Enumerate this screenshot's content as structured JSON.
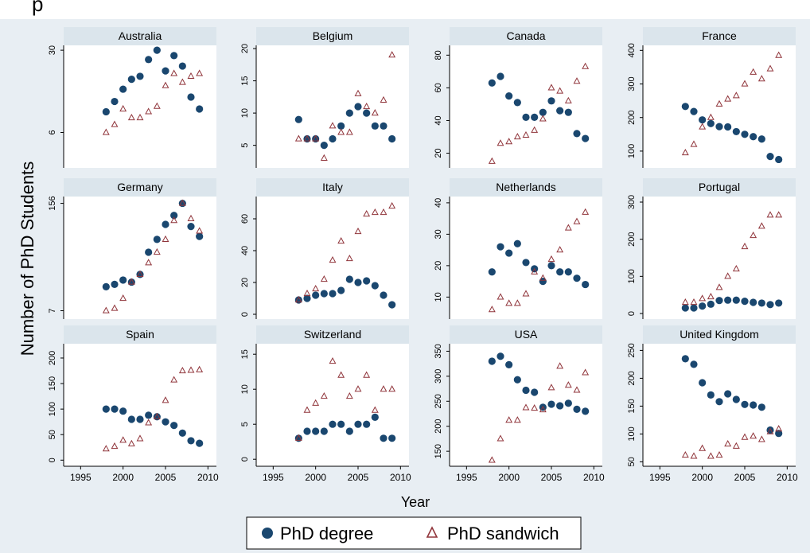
{
  "chart_data": {
    "type": "scatter",
    "ylabel": "Number of PhD Students",
    "xlabel": "Year",
    "xlim": [
      1993,
      2011
    ],
    "xticks": [
      1995,
      2000,
      2005,
      2010
    ],
    "grid": false,
    "legend_position": "bottom",
    "colors": {
      "outer_background": "#e8eef3",
      "panel_background": "#ffffff",
      "header_background": "#dbe5ec",
      "phd_degree": "#1a476f",
      "phd_sandwich": "#90353b"
    },
    "legend": [
      {
        "label": "PhD degree",
        "marker": "circle"
      },
      {
        "label": "PhD sandwich",
        "marker": "triangle"
      }
    ],
    "panels": [
      {
        "name": "Australia",
        "ylim": [
          3,
          33
        ],
        "yticks": [
          6,
          30
        ],
        "yscale": "log",
        "series": [
          {
            "name": "PhD degree",
            "x": [
              1998,
              1999,
              2000,
              2001,
              2002,
              2003,
              2004,
              2005,
              2006,
              2007,
              2008,
              2009
            ],
            "y": [
              9,
              11,
              14,
              17,
              18,
              25,
              30,
              20,
              27,
              22,
              12,
              9.5
            ]
          },
          {
            "name": "PhD sandwich",
            "x": [
              1998,
              1999,
              2000,
              2001,
              2002,
              2003,
              2004,
              2005,
              2006,
              2007,
              2008,
              2009
            ],
            "y": [
              6,
              7,
              9.5,
              8,
              8,
              9,
              10,
              15,
              19,
              16,
              18,
              19
            ]
          }
        ]
      },
      {
        "name": "Belgium",
        "ylim": [
          1.5,
          20.5
        ],
        "yticks": [
          5,
          10,
          15,
          20
        ],
        "series": [
          {
            "name": "PhD degree",
            "x": [
              1998,
              1999,
              2000,
              2001,
              2002,
              2003,
              2004,
              2005,
              2006,
              2007,
              2008,
              2009
            ],
            "y": [
              9,
              6,
              6,
              5,
              6,
              8,
              10,
              11,
              10,
              8,
              8,
              6
            ]
          },
          {
            "name": "PhD sandwich",
            "x": [
              1998,
              1999,
              2000,
              2001,
              2002,
              2003,
              2004,
              2005,
              2006,
              2007,
              2008,
              2009
            ],
            "y": [
              6,
              6,
              6,
              3,
              8,
              7,
              7,
              13,
              11,
              10,
              12,
              19
            ]
          }
        ]
      },
      {
        "name": "Canada",
        "ylim": [
          11,
          86
        ],
        "yticks": [
          20,
          40,
          60,
          80
        ],
        "series": [
          {
            "name": "PhD degree",
            "x": [
              1998,
              1999,
              2000,
              2001,
              2002,
              2003,
              2004,
              2005,
              2006,
              2007,
              2008,
              2009
            ],
            "y": [
              63,
              67,
              55,
              51,
              42,
              42,
              45,
              52,
              46,
              45,
              32,
              29
            ]
          },
          {
            "name": "PhD sandwich",
            "x": [
              1998,
              1999,
              2000,
              2001,
              2002,
              2003,
              2004,
              2005,
              2006,
              2007,
              2008,
              2009
            ],
            "y": [
              15,
              26,
              27,
              30,
              31,
              34,
              41,
              60,
              58,
              52,
              64,
              73
            ]
          }
        ]
      },
      {
        "name": "France",
        "ylim": [
          50,
          415
        ],
        "yticks": [
          100,
          200,
          300,
          400
        ],
        "series": [
          {
            "name": "PhD degree",
            "x": [
              1998,
              1999,
              2000,
              2001,
              2002,
              2003,
              2004,
              2005,
              2006,
              2007,
              2008,
              2009
            ],
            "y": [
              233,
              218,
              193,
              182,
              173,
              172,
              158,
              150,
              143,
              136,
              84,
              75
            ]
          },
          {
            "name": "PhD sandwich",
            "x": [
              1998,
              1999,
              2000,
              2001,
              2002,
              2003,
              2004,
              2005,
              2006,
              2007,
              2008,
              2009
            ],
            "y": [
              95,
              120,
              172,
              200,
              240,
              255,
              265,
              300,
              335,
              315,
              345,
              385
            ]
          }
        ]
      },
      {
        "name": "Germany",
        "ylim": [
          5.5,
          190
        ],
        "yticks": [
          7,
          156
        ],
        "yscale": "log",
        "series": [
          {
            "name": "PhD degree",
            "x": [
              1998,
              1999,
              2000,
              2001,
              2002,
              2003,
              2004,
              2005,
              2006,
              2007,
              2008,
              2009
            ],
            "y": [
              14,
              15,
              17,
              16,
              20,
              38,
              55,
              85,
              110,
              156,
              80,
              60
            ]
          },
          {
            "name": "PhD sandwich",
            "x": [
              1998,
              1999,
              2000,
              2001,
              2002,
              2003,
              2004,
              2005,
              2006,
              2007,
              2008,
              2009
            ],
            "y": [
              7,
              7.5,
              10,
              16,
              20,
              28,
              38,
              55,
              95,
              156,
              100,
              70
            ]
          }
        ]
      },
      {
        "name": "Italy",
        "ylim": [
          -3,
          74
        ],
        "yticks": [
          0,
          20,
          40,
          60
        ],
        "series": [
          {
            "name": "PhD degree",
            "x": [
              1998,
              1999,
              2000,
              2001,
              2002,
              2003,
              2004,
              2005,
              2006,
              2007,
              2008,
              2009
            ],
            "y": [
              9,
              10,
              12,
              13,
              13,
              15,
              22,
              20,
              21,
              18,
              12,
              6
            ]
          },
          {
            "name": "PhD sandwich",
            "x": [
              1998,
              1999,
              2000,
              2001,
              2002,
              2003,
              2004,
              2005,
              2006,
              2007,
              2008,
              2009
            ],
            "y": [
              9,
              13,
              16,
              22,
              34,
              46,
              35,
              52,
              63,
              64,
              64,
              68
            ]
          }
        ]
      },
      {
        "name": "Netherlands",
        "ylim": [
          3,
          42
        ],
        "yticks": [
          10,
          20,
          30,
          40
        ],
        "series": [
          {
            "name": "PhD degree",
            "x": [
              1998,
              1999,
              2000,
              2001,
              2002,
              2003,
              2004,
              2005,
              2006,
              2007,
              2008,
              2009
            ],
            "y": [
              18,
              26,
              24,
              27,
              21,
              19,
              15,
              20,
              18,
              18,
              16,
              14
            ]
          },
          {
            "name": "PhD sandwich",
            "x": [
              1998,
              1999,
              2000,
              2001,
              2002,
              2003,
              2004,
              2005,
              2006,
              2007,
              2008,
              2009
            ],
            "y": [
              6,
              10,
              8,
              8,
              11,
              18,
              16,
              22,
              25,
              32,
              34,
              37
            ]
          }
        ]
      },
      {
        "name": "Portugal",
        "ylim": [
          -15,
          315
        ],
        "yticks": [
          0,
          100,
          200,
          300
        ],
        "series": [
          {
            "name": "PhD degree",
            "x": [
              1998,
              1999,
              2000,
              2001,
              2002,
              2003,
              2004,
              2005,
              2006,
              2007,
              2008,
              2009
            ],
            "y": [
              15,
              15,
              20,
              25,
              35,
              36,
              36,
              33,
              30,
              28,
              24,
              28
            ]
          },
          {
            "name": "PhD sandwich",
            "x": [
              1998,
              1999,
              2000,
              2001,
              2002,
              2003,
              2004,
              2005,
              2006,
              2007,
              2008,
              2009
            ],
            "y": [
              30,
              30,
              40,
              45,
              70,
              100,
              120,
              180,
              210,
              235,
              265,
              265
            ]
          }
        ]
      },
      {
        "name": "Spain",
        "ylim": [
          -12,
          228
        ],
        "yticks": [
          0,
          50,
          100,
          150,
          200
        ],
        "series": [
          {
            "name": "PhD degree",
            "x": [
              1998,
              1999,
              2000,
              2001,
              2002,
              2003,
              2004,
              2005,
              2006,
              2007,
              2008,
              2009
            ],
            "y": [
              100,
              100,
              96,
              80,
              80,
              88,
              85,
              75,
              68,
              53,
              38,
              33
            ]
          },
          {
            "name": "PhD sandwich",
            "x": [
              1998,
              1999,
              2000,
              2001,
              2002,
              2003,
              2004,
              2005,
              2006,
              2007,
              2008,
              2009
            ],
            "y": [
              22,
              27,
              39,
              32,
              42,
              73,
              85,
              117,
              157,
              175,
              176,
              177
            ]
          }
        ]
      },
      {
        "name": "Switzerland",
        "ylim": [
          -1,
          16.5
        ],
        "yticks": [
          0,
          5,
          10,
          15
        ],
        "series": [
          {
            "name": "PhD degree",
            "x": [
              1998,
              1999,
              2000,
              2001,
              2002,
              2003,
              2004,
              2005,
              2006,
              2007,
              2008,
              2009
            ],
            "y": [
              3,
              4,
              4,
              4,
              5,
              5,
              4,
              5,
              5,
              6,
              3,
              3
            ]
          },
          {
            "name": "PhD sandwich",
            "x": [
              1998,
              1999,
              2000,
              2001,
              2002,
              2003,
              2004,
              2005,
              2006,
              2007,
              2008,
              2009
            ],
            "y": [
              3,
              7,
              8,
              9,
              14,
              12,
              9,
              10,
              12,
              7,
              10,
              10
            ]
          }
        ]
      },
      {
        "name": "USA",
        "ylim": [
          120,
          365
        ],
        "yticks": [
          150,
          200,
          250,
          300,
          350
        ],
        "series": [
          {
            "name": "PhD degree",
            "x": [
              1998,
              1999,
              2000,
              2001,
              2002,
              2003,
              2004,
              2005,
              2006,
              2007,
              2008,
              2009
            ],
            "y": [
              330,
              340,
              323,
              293,
              272,
              268,
              238,
              244,
              241,
              246,
              234,
              230
            ]
          },
          {
            "name": "PhD sandwich",
            "x": [
              1998,
              1999,
              2000,
              2001,
              2002,
              2003,
              2004,
              2005,
              2006,
              2007,
              2008,
              2009
            ],
            "y": [
              132,
              175,
              212,
              212,
              237,
              236,
              233,
              277,
              320,
              282,
              272,
              307
            ]
          }
        ]
      },
      {
        "name": "United Kingdom",
        "ylim": [
          42,
          262
        ],
        "yticks": [
          50,
          100,
          150,
          200,
          250
        ],
        "series": [
          {
            "name": "PhD degree",
            "x": [
              1998,
              1999,
              2000,
              2001,
              2002,
              2003,
              2004,
              2005,
              2006,
              2007,
              2008,
              2009
            ],
            "y": [
              235,
              225,
              192,
              170,
              158,
              172,
              162,
              153,
              152,
              148,
              107,
              101
            ]
          },
          {
            "name": "PhD sandwich",
            "x": [
              1998,
              1999,
              2000,
              2001,
              2002,
              2003,
              2004,
              2005,
              2006,
              2007,
              2008,
              2009
            ],
            "y": [
              62,
              60,
              74,
              60,
              62,
              82,
              78,
              94,
              96,
              90,
              104,
              109
            ]
          }
        ]
      }
    ]
  }
}
